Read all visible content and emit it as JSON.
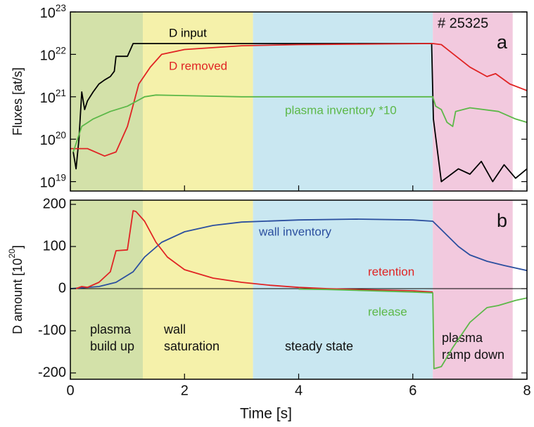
{
  "chart_data": [
    {
      "type": "line",
      "log_y": true,
      "ylabel": "Fluxes [at/s]",
      "xlim": [
        0,
        8
      ],
      "ylim": [
        6e+18,
        1e+23
      ],
      "yticks": [
        {
          "value": 1e+19,
          "label": "10^19"
        },
        {
          "value": 1e+20,
          "label": "10^20"
        },
        {
          "value": 1e+21,
          "label": "10^21"
        },
        {
          "value": 1e+22,
          "label": "10^22"
        },
        {
          "value": 1e+23,
          "label": "10^23"
        }
      ],
      "annotations": [
        "# 25325",
        "a"
      ],
      "regions": [
        {
          "start": 0,
          "end": 1.27,
          "color": "#d3e1a9"
        },
        {
          "start": 1.27,
          "end": 3.2,
          "color": "#f5f1aa"
        },
        {
          "start": 3.2,
          "end": 6.35,
          "color": "#c9e7f1"
        },
        {
          "start": 6.35,
          "end": 7.75,
          "color": "#f2c9de"
        }
      ],
      "series": [
        {
          "name": "D input",
          "color": "#000000",
          "x": [
            0.05,
            0.1,
            0.15,
            0.2,
            0.25,
            0.3,
            0.4,
            0.5,
            0.6,
            0.7,
            0.77,
            0.8,
            1.0,
            1.1,
            1.15,
            2,
            3,
            4,
            5,
            6,
            6.33,
            6.36,
            6.5,
            6.8,
            7,
            7.2,
            7.4,
            7.6,
            7.8,
            8
          ],
          "values": [
            5e+19,
            2e+19,
            1e+20,
            1.3e+21,
            5e+20,
            8e+20,
            1.3e+21,
            2e+21,
            2.5e+21,
            3e+21,
            4e+21,
            9e+21,
            9e+21,
            1.8e+22,
            1.8e+22,
            1.8e+22,
            1.8e+22,
            1.8e+22,
            1.8e+22,
            1.8e+22,
            1.8e+22,
            3e+20,
            1e+19,
            2e+19,
            1.5e+19,
            3e+19,
            1e+19,
            2.5e+19,
            1.2e+19,
            2e+19
          ]
        },
        {
          "name": "D removed",
          "color": "#e02424",
          "x": [
            0,
            0.3,
            0.6,
            0.8,
            1.0,
            1.2,
            1.4,
            1.6,
            2,
            3,
            4,
            6.35,
            6.5,
            7,
            7.3,
            7.45,
            7.7,
            8
          ],
          "values": [
            6e+19,
            6e+19,
            4e+19,
            5e+19,
            2e+20,
            2e+21,
            5e+21,
            1e+22,
            1.3e+22,
            1.6e+22,
            1.7e+22,
            1.8e+22,
            1.7e+22,
            5e+21,
            3e+21,
            3.5e+21,
            2e+21,
            1.4e+21
          ]
        },
        {
          "name": "plasma inventory *10",
          "color": "#5cb848",
          "x": [
            0.05,
            0.2,
            0.4,
            0.7,
            1.0,
            1.3,
            1.5,
            3,
            6.35,
            6.4,
            6.5,
            6.6,
            6.7,
            6.75,
            7,
            7.5,
            7.8,
            8
          ],
          "values": [
            5e+19,
            2e+20,
            3e+20,
            4.5e+20,
            6e+20,
            1e+21,
            1.1e+21,
            1e+21,
            1e+21,
            6e+20,
            5e+20,
            2.5e+20,
            2e+20,
            4.5e+20,
            5.5e+20,
            4.5e+20,
            3e+20,
            2.5e+20
          ]
        }
      ]
    },
    {
      "type": "line",
      "xlabel": "Time [s]",
      "ylabel": "D amount [10^20]",
      "xlim": [
        0,
        8
      ],
      "ylim": [
        -215,
        210
      ],
      "xticks": [
        0,
        2,
        4,
        6,
        8
      ],
      "yticks": [
        -200,
        -100,
        0,
        100,
        200
      ],
      "annotations": [
        "b"
      ],
      "regions": [
        {
          "start": 0,
          "end": 1.27,
          "color": "#d3e1a9",
          "label": [
            "plasma",
            "build up"
          ]
        },
        {
          "start": 1.27,
          "end": 3.2,
          "color": "#f5f1aa",
          "label": [
            "wall",
            "saturation"
          ]
        },
        {
          "start": 3.2,
          "end": 6.35,
          "color": "#c9e7f1",
          "label": [
            "steady state"
          ]
        },
        {
          "start": 6.35,
          "end": 7.75,
          "color": "#f2c9de",
          "label": [
            "plasma",
            "ramp down"
          ]
        }
      ],
      "series": [
        {
          "name": "wall inventory",
          "color": "#2b4f9f",
          "x": [
            0,
            0.5,
            0.8,
            1.1,
            1.3,
            1.6,
            2,
            2.5,
            3,
            4,
            5,
            6,
            6.35,
            6.5,
            6.8,
            7,
            7.3,
            7.6,
            8
          ],
          "values": [
            0,
            5,
            15,
            40,
            75,
            110,
            135,
            150,
            158,
            163,
            165,
            163,
            160,
            140,
            100,
            80,
            65,
            55,
            43
          ]
        },
        {
          "name": "retention",
          "color": "#e02424",
          "x": [
            0.1,
            0.2,
            0.3,
            0.5,
            0.7,
            0.8,
            1.0,
            1.1,
            1.15,
            1.3,
            1.5,
            1.7,
            2.0,
            2.5,
            3,
            3.5,
            4,
            4.5,
            5,
            6,
            6.35
          ],
          "values": [
            0,
            5,
            3,
            15,
            40,
            90,
            92,
            185,
            183,
            160,
            110,
            75,
            45,
            25,
            15,
            8,
            3,
            0,
            -2,
            -5,
            -8
          ]
        },
        {
          "name": "release",
          "color": "#5cb848",
          "x": [
            4,
            4.5,
            5,
            6,
            6.35,
            6.37,
            6.5,
            6.7,
            7,
            7.3,
            7.5,
            7.8,
            8
          ],
          "values": [
            -1,
            -2,
            -4,
            -8,
            -10,
            -190,
            -185,
            -140,
            -80,
            -45,
            -40,
            -28,
            -22
          ]
        }
      ]
    }
  ]
}
